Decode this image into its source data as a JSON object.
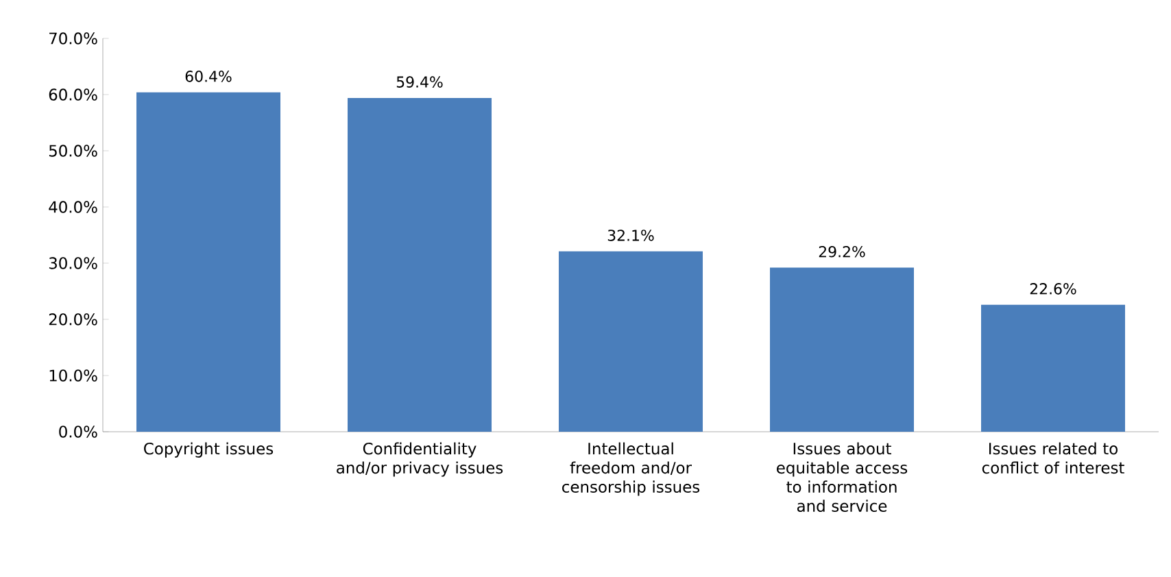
{
  "chart_data": {
    "type": "bar",
    "categories": [
      "Copyright issues",
      "Confidentiality and/or privacy issues",
      "Intellectual freedom and/or censorship issues",
      "Issues about equitable access to information and service",
      "Issues related to conflict of interest"
    ],
    "values": [
      60.4,
      59.4,
      32.1,
      29.2,
      22.6
    ],
    "value_labels": [
      "60.4%",
      "59.4%",
      "32.1%",
      "29.2%",
      "22.6%"
    ],
    "color": "#4a7ebb",
    "ylim": [
      0,
      70
    ],
    "yticks": [
      {
        "value": 0,
        "label": "0.0%"
      },
      {
        "value": 10,
        "label": "10.0%"
      },
      {
        "value": 20,
        "label": "20.0%"
      },
      {
        "value": 30,
        "label": "30.0%"
      },
      {
        "value": 40,
        "label": "40.0%"
      },
      {
        "value": 50,
        "label": "50.0%"
      },
      {
        "value": 60,
        "label": "60.0%"
      },
      {
        "value": 70,
        "label": "70.0%"
      }
    ],
    "grid": false
  }
}
